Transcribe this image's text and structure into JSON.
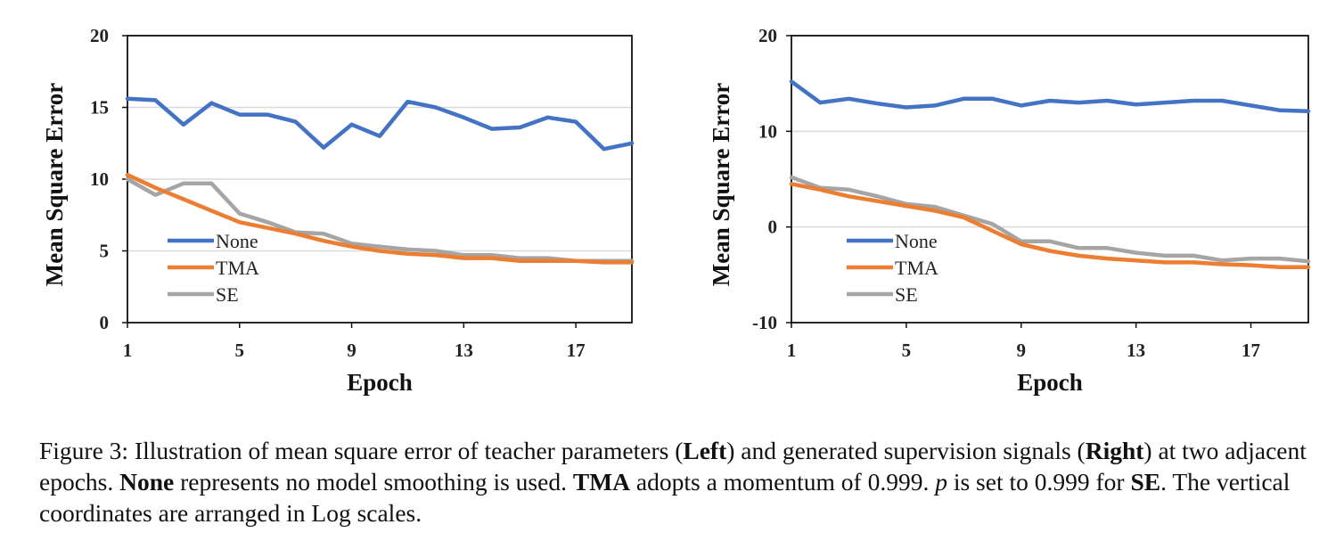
{
  "chart_data": [
    {
      "type": "line",
      "xlabel": "Epoch",
      "ylabel": "Mean Square Error",
      "x": [
        1,
        2,
        3,
        4,
        5,
        6,
        7,
        8,
        9,
        10,
        11,
        12,
        13,
        14,
        15,
        16,
        17,
        18,
        19
      ],
      "xticks": [
        1,
        5,
        9,
        13,
        17
      ],
      "yticks": [
        0,
        5,
        10,
        15,
        20
      ],
      "ylim": [
        0,
        20
      ],
      "grid": "horizontal",
      "legend": "lower-left",
      "series": [
        {
          "name": "None",
          "color": "#4472C4",
          "values": [
            15.6,
            15.5,
            13.8,
            15.3,
            14.5,
            14.5,
            14.0,
            12.2,
            13.8,
            13.0,
            15.4,
            15.0,
            14.3,
            13.5,
            13.6,
            14.3,
            14.0,
            12.1,
            12.5
          ]
        },
        {
          "name": "TMA",
          "color": "#ED7D31",
          "values": [
            10.3,
            9.4,
            8.6,
            7.8,
            7.0,
            6.6,
            6.2,
            5.7,
            5.3,
            5.0,
            4.8,
            4.7,
            4.5,
            4.5,
            4.3,
            4.3,
            4.3,
            4.2,
            4.2
          ]
        },
        {
          "name": "SE",
          "color": "#A5A5A5",
          "values": [
            10.0,
            8.9,
            9.7,
            9.7,
            7.6,
            7.0,
            6.3,
            6.2,
            5.5,
            5.3,
            5.1,
            5.0,
            4.7,
            4.7,
            4.5,
            4.5,
            4.3,
            4.3,
            4.3
          ]
        }
      ]
    },
    {
      "type": "line",
      "xlabel": "Epoch",
      "ylabel": "Mean Square Error",
      "x": [
        1,
        2,
        3,
        4,
        5,
        6,
        7,
        8,
        9,
        10,
        11,
        12,
        13,
        14,
        15,
        16,
        17,
        18,
        19
      ],
      "xticks": [
        1,
        5,
        9,
        13,
        17
      ],
      "yticks": [
        -10,
        0,
        10,
        20
      ],
      "ylim": [
        -10,
        20
      ],
      "grid": "horizontal",
      "legend": "lower-left",
      "series": [
        {
          "name": "None",
          "color": "#4472C4",
          "values": [
            15.2,
            13.0,
            13.4,
            12.9,
            12.5,
            12.7,
            13.4,
            13.4,
            12.7,
            13.2,
            13.0,
            13.2,
            12.8,
            13.0,
            13.2,
            13.2,
            12.7,
            12.2,
            12.1
          ]
        },
        {
          "name": "TMA",
          "color": "#ED7D31",
          "values": [
            4.5,
            3.9,
            3.2,
            2.7,
            2.2,
            1.7,
            1.0,
            -0.4,
            -1.8,
            -2.5,
            -3.0,
            -3.3,
            -3.5,
            -3.7,
            -3.7,
            -3.9,
            -4.0,
            -4.2,
            -4.2
          ]
        },
        {
          "name": "SE",
          "color": "#A5A5A5",
          "values": [
            5.2,
            4.1,
            3.9,
            3.2,
            2.4,
            2.1,
            1.2,
            0.3,
            -1.5,
            -1.5,
            -2.2,
            -2.2,
            -2.7,
            -3.0,
            -3.0,
            -3.5,
            -3.3,
            -3.3,
            -3.6
          ]
        }
      ]
    }
  ],
  "caption": {
    "figure_label": "Figure 3:",
    "t1": " Illustration of mean square error of teacher parameters (",
    "left": "Left",
    "t2": ") and generated supervision signals (",
    "right": "Right",
    "t3": ") at two adjacent epochs. ",
    "none": "None",
    "t4": " represents no model smoothing is used. ",
    "tma": "TMA",
    "t5": " adopts a momentum of 0.999. ",
    "p": "p",
    "t6": " is set to 0.999 for ",
    "se": "SE",
    "t7": ". The vertical coordinates are arranged in Log scales."
  }
}
